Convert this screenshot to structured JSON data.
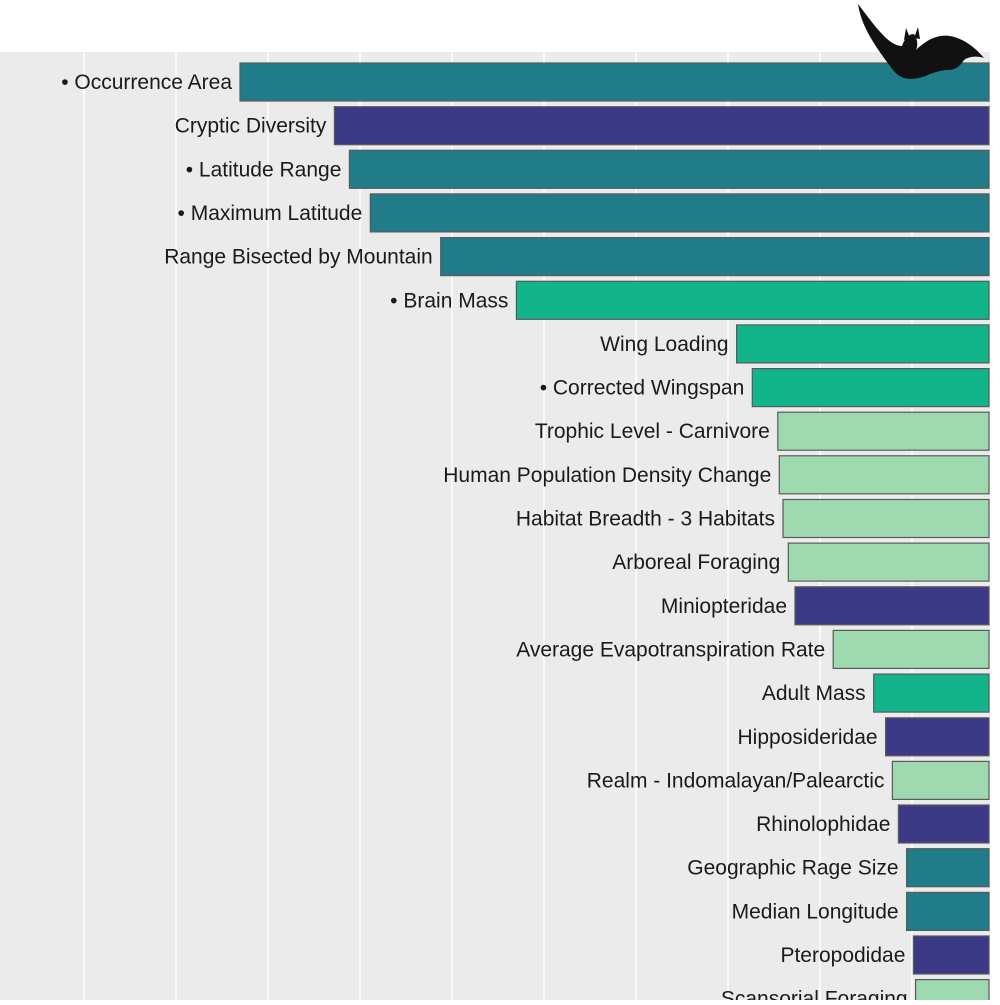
{
  "chart_data": {
    "type": "bar",
    "orientation": "horizontal",
    "sorted": "descending",
    "grid": true,
    "xlim": [
      0,
      100
    ],
    "colors": {
      "background": "#ebebeb",
      "grid": "#ffffff",
      "label": "#1a1a1a",
      "bar_outline": "#5a5a5a",
      "teal": "#1f7c88",
      "indigo": "#3c3a86",
      "green": "#12b58a",
      "light_green": "#9ed9b0"
    },
    "categories": [
      "Occurrence Area",
      "Cryptic Diversity",
      "Latitude Range",
      "Maximum Latitude",
      "Range Bisected by Mountain",
      "Brain Mass",
      "Wing Loading",
      "Corrected Wingspan",
      "Trophic Level - Carnivore",
      "Human Population Density Change",
      "Habitat Breadth - 3 Habitats",
      "Arboreal Foraging",
      "Miniopteridae",
      "Average Evapotranspiration Rate",
      "Adult Mass",
      "Hipposideridae",
      "Realm - Indomalayan/Palearctic",
      "Rhinolophidae",
      "Geographic Rage Size",
      "Median Longitude",
      "Pteropodidae",
      "Scansorial Foraging"
    ],
    "marked": [
      true,
      false,
      true,
      true,
      false,
      true,
      false,
      true,
      false,
      false,
      false,
      false,
      false,
      false,
      false,
      false,
      false,
      false,
      false,
      false,
      false,
      false
    ],
    "values": [
      100.0,
      87.4,
      85.4,
      82.6,
      73.2,
      63.1,
      33.7,
      31.6,
      28.2,
      28.0,
      27.5,
      26.8,
      25.9,
      20.8,
      15.4,
      13.8,
      12.9,
      12.1,
      11.0,
      11.0,
      10.1,
      9.8
    ],
    "groups": [
      "teal",
      "indigo",
      "teal",
      "teal",
      "teal",
      "green",
      "green",
      "green",
      "light_green",
      "light_green",
      "light_green",
      "light_green",
      "indigo",
      "light_green",
      "green",
      "indigo",
      "light_green",
      "indigo",
      "teal",
      "teal",
      "indigo",
      "light_green"
    ]
  },
  "decoration": {
    "silhouette_icon": "bat-silhouette-icon",
    "marker_symbol": "•"
  }
}
